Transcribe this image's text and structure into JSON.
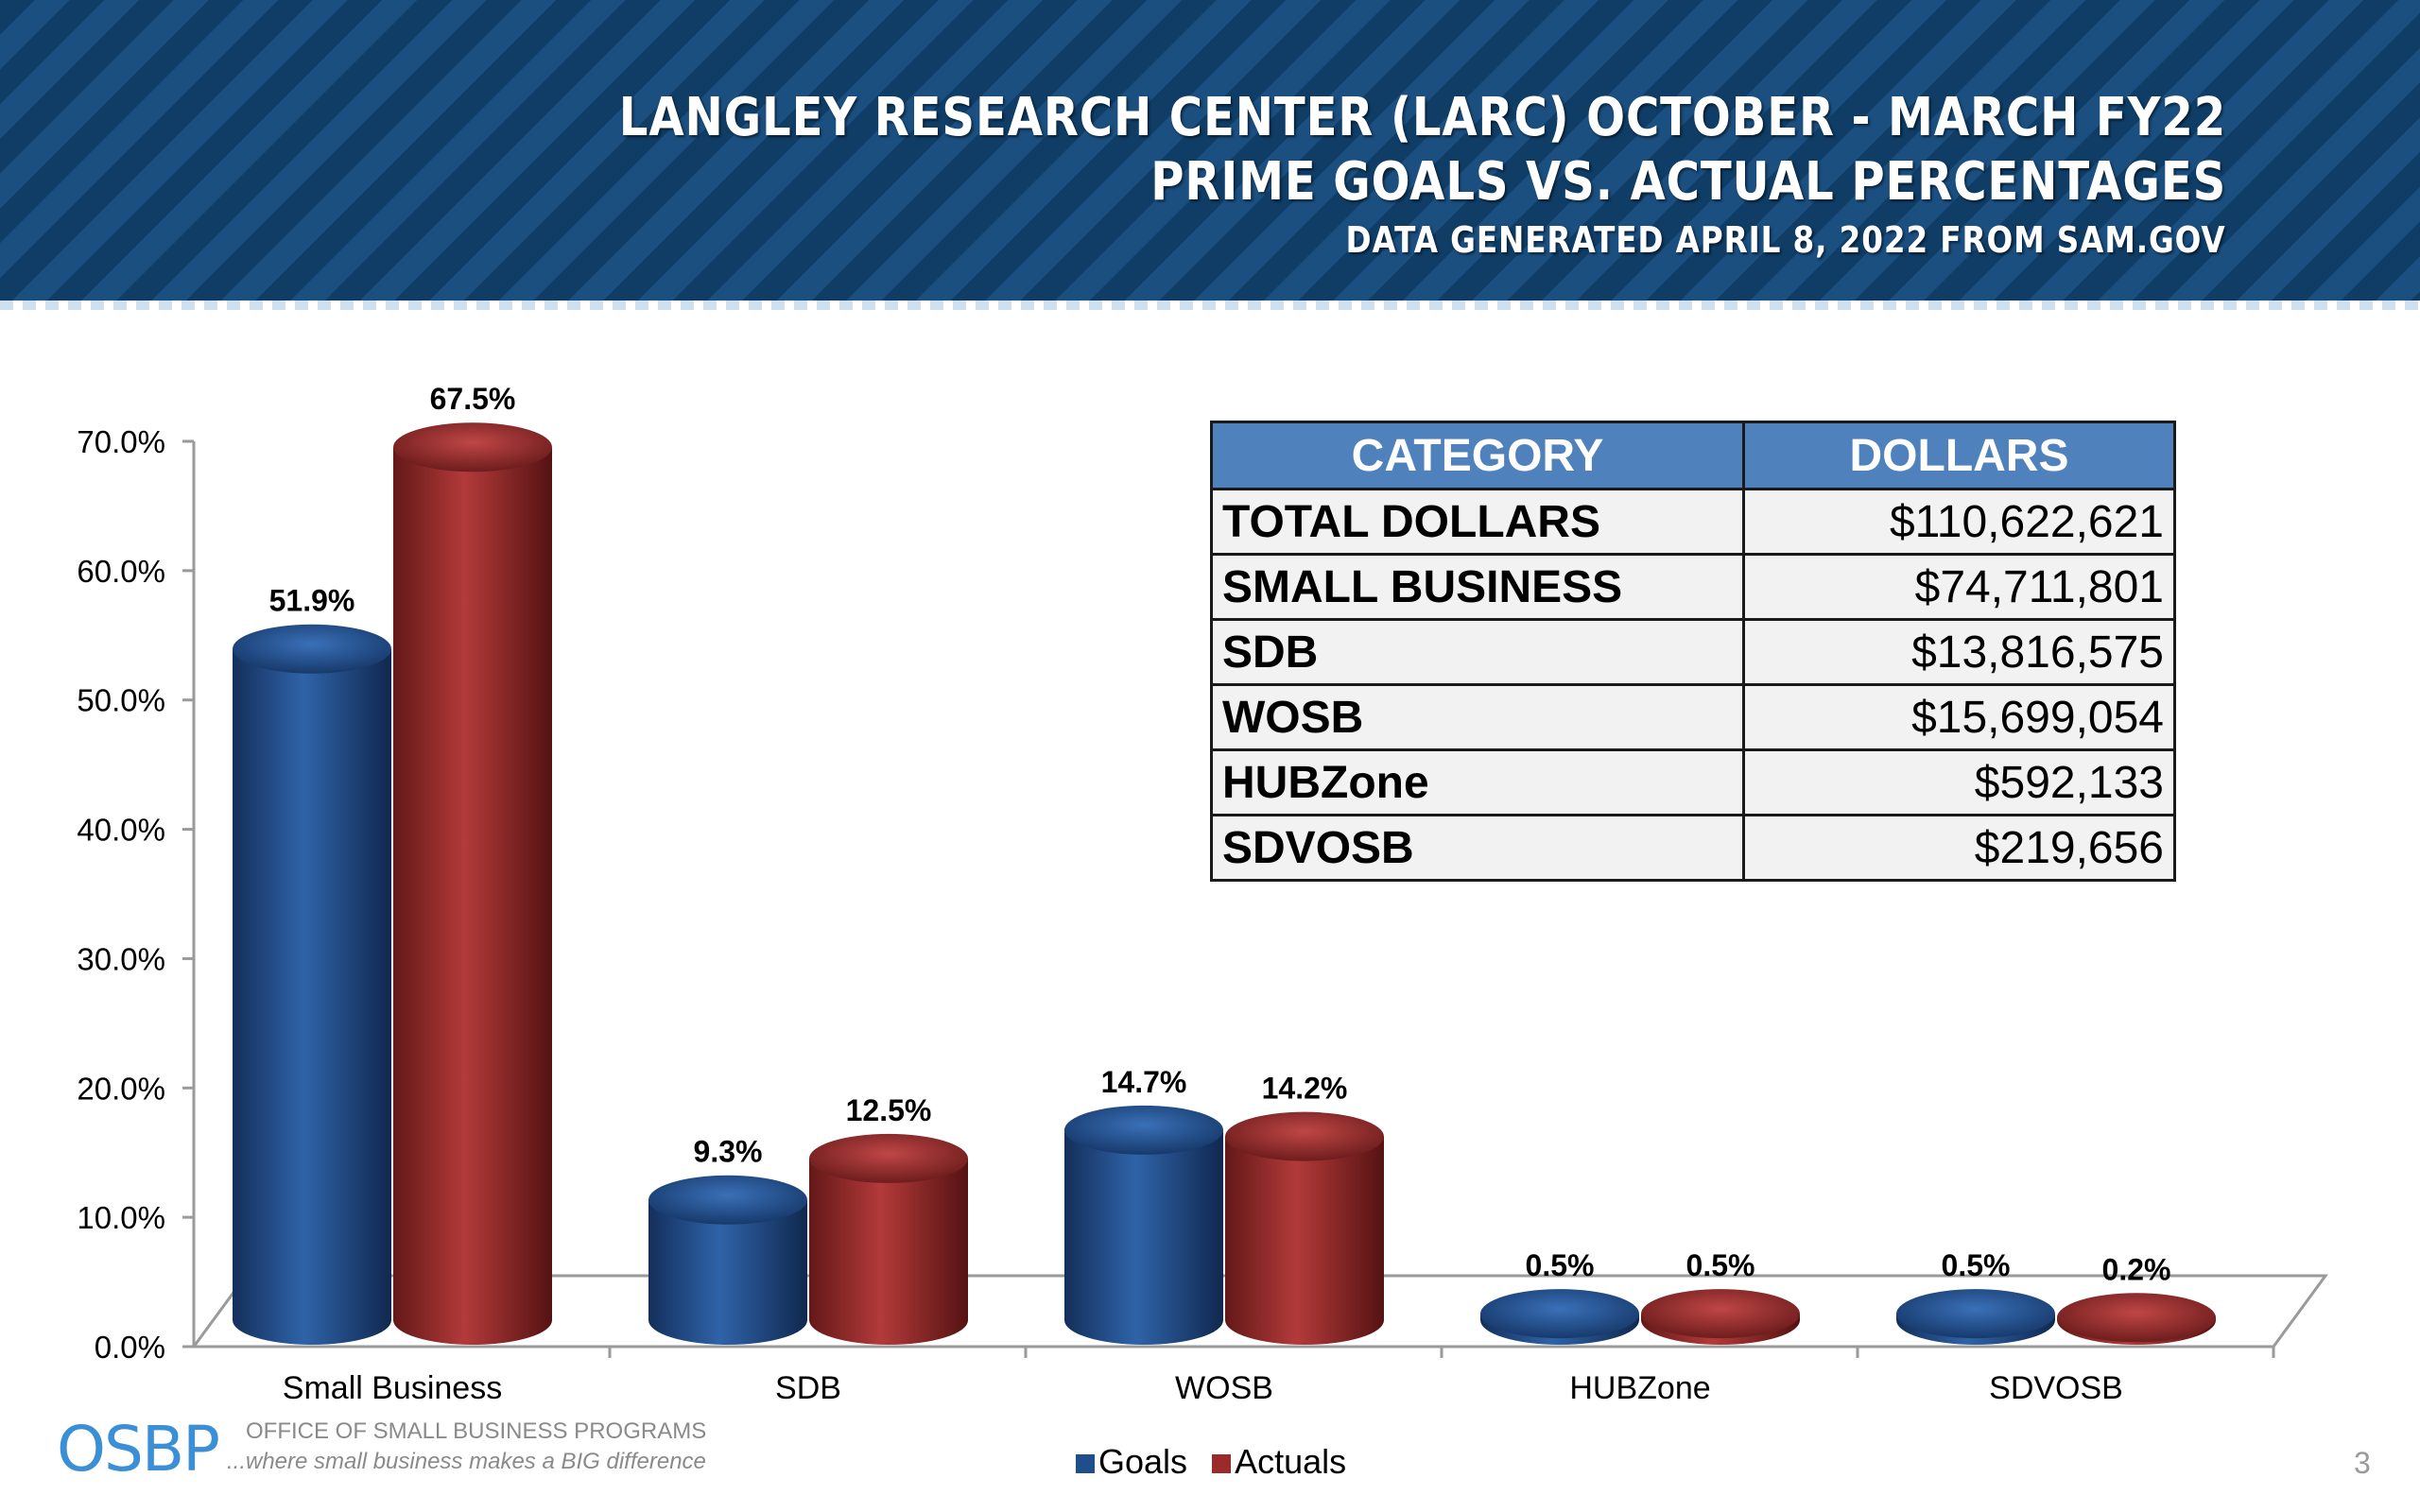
{
  "header": {
    "title_line1": "LANGLEY RESEARCH CENTER (LARC) OCTOBER - MARCH FY22",
    "title_line2": "PRIME GOALS VS. ACTUAL PERCENTAGES",
    "title_line3": "DATA GENERATED APRIL 8, 2022 FROM SAM.GOV"
  },
  "chart_data": {
    "type": "bar",
    "categories": [
      "Small Business",
      "SDB",
      "WOSB",
      "HUBZone",
      "SDVOSB"
    ],
    "series": [
      {
        "name": "Goals",
        "color": "#1f4e8c",
        "values": [
          51.9,
          9.3,
          14.7,
          0.5,
          0.5
        ],
        "labels": [
          "51.9%",
          "9.3%",
          "14.7%",
          "0.5%",
          "0.5%"
        ]
      },
      {
        "name": "Actuals",
        "color": "#9b2a2a",
        "values": [
          67.5,
          12.5,
          14.2,
          0.5,
          0.2
        ],
        "labels": [
          "67.5%",
          "12.5%",
          "14.2%",
          "0.5%",
          "0.2%"
        ]
      }
    ],
    "ylim": [
      0,
      70
    ],
    "yticks": [
      "0.0%",
      "10.0%",
      "20.0%",
      "30.0%",
      "40.0%",
      "50.0%",
      "60.0%",
      "70.0%"
    ],
    "legend_position": "bottom-center"
  },
  "table": {
    "headers": [
      "CATEGORY",
      "DOLLARS"
    ],
    "rows": [
      {
        "category": "TOTAL DOLLARS",
        "dollars": "$110,622,621"
      },
      {
        "category": "SMALL BUSINESS",
        "dollars": "$74,711,801"
      },
      {
        "category": "SDB",
        "dollars": "$13,816,575"
      },
      {
        "category": "WOSB",
        "dollars": "$15,699,054"
      },
      {
        "category": "HUBZone",
        "dollars": "$592,133"
      },
      {
        "category": "SDVOSB",
        "dollars": "$219,656"
      }
    ]
  },
  "footer": {
    "logo_text": "OSBP",
    "logo_line1": "OFFICE OF SMALL BUSINESS PROGRAMS",
    "logo_line2": "...where small business makes a BIG difference",
    "page_number": "3"
  },
  "colors": {
    "goals": "#1f4e8c",
    "actuals": "#9b2a2a",
    "table_header": "#4f81bd"
  }
}
